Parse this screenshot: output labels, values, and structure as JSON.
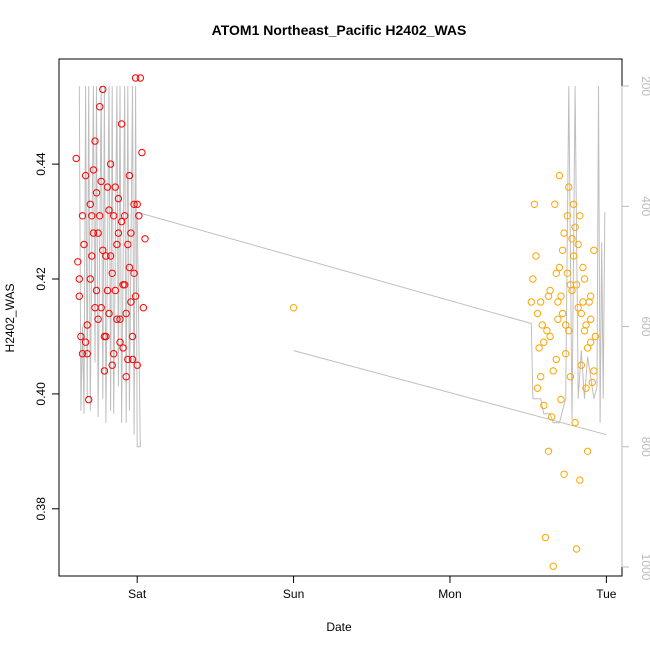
{
  "chart_data": {
    "type": "scatter",
    "title": "ATOM1 Northeast_Pacific H2402_WAS",
    "xlabel": "Date",
    "ylabel": "H2402_WAS",
    "x_tick_labels": [
      "Sat",
      "Sun",
      "Mon",
      "Tue"
    ],
    "y_tick_labels": [
      "0.38",
      "0.40",
      "0.42",
      "0.44"
    ],
    "y2_tick_labels": [
      "200",
      "400",
      "600",
      "800",
      "1000"
    ],
    "xlim": [
      -0.5,
      3.1
    ],
    "ylim": [
      0.3683,
      0.4583
    ],
    "y2lim": [
      1015,
      155
    ],
    "y2_reversed": true,
    "grid": false,
    "legend": "none",
    "colors": {
      "series_1": "#ff0000",
      "series_2": "#ffa500",
      "pressure_line": "#bebebe",
      "right_axis": "#bbbbbb"
    },
    "series": [
      {
        "marker": "open-circle",
        "color": "#ff0000",
        "points": [
          [
            -0.39,
            0.441
          ],
          [
            -0.38,
            0.423
          ],
          [
            -0.37,
            0.417
          ],
          [
            -0.36,
            0.41
          ],
          [
            -0.35,
            0.407
          ],
          [
            -0.34,
            0.426
          ],
          [
            -0.33,
            0.438
          ],
          [
            -0.32,
            0.412
          ],
          [
            -0.31,
            0.399
          ],
          [
            -0.3,
            0.42
          ],
          [
            -0.29,
            0.431
          ],
          [
            -0.28,
            0.439
          ],
          [
            -0.27,
            0.444
          ],
          [
            -0.26,
            0.435
          ],
          [
            -0.25,
            0.428
          ],
          [
            -0.24,
            0.45
          ],
          [
            -0.23,
            0.415
          ],
          [
            -0.22,
            0.453
          ],
          [
            -0.21,
            0.41
          ],
          [
            -0.2,
            0.424
          ],
          [
            -0.19,
            0.418
          ],
          [
            -0.18,
            0.432
          ],
          [
            -0.17,
            0.44
          ],
          [
            -0.16,
            0.421
          ],
          [
            -0.15,
            0.407
          ],
          [
            -0.14,
            0.436
          ],
          [
            -0.13,
            0.413
          ],
          [
            -0.12,
            0.428
          ],
          [
            -0.11,
            0.409
          ],
          [
            -0.1,
            0.447
          ],
          [
            -0.09,
            0.419
          ],
          [
            -0.08,
            0.431
          ],
          [
            -0.07,
            0.403
          ],
          [
            -0.06,
            0.426
          ],
          [
            -0.05,
            0.438
          ],
          [
            -0.04,
            0.416
          ],
          [
            -0.03,
            0.41
          ],
          [
            -0.02,
            0.433
          ],
          [
            -0.01,
            0.455
          ],
          [
            0.0,
            0.405
          ],
          [
            -0.37,
            0.42
          ],
          [
            -0.33,
            0.409
          ],
          [
            -0.3,
            0.433
          ],
          [
            -0.27,
            0.415
          ],
          [
            -0.24,
            0.431
          ],
          [
            -0.2,
            0.41
          ],
          [
            -0.17,
            0.424
          ],
          [
            -0.14,
            0.418
          ],
          [
            -0.1,
            0.43
          ],
          [
            -0.07,
            0.414
          ],
          [
            -0.04,
            0.428
          ],
          [
            -0.01,
            0.417
          ],
          [
            0.01,
            0.431
          ],
          [
            0.02,
            0.455
          ],
          [
            0.03,
            0.442
          ],
          [
            0.04,
            0.415
          ],
          [
            0.05,
            0.427
          ],
          [
            -0.06,
            0.406
          ],
          [
            -0.02,
            0.421
          ],
          [
            -0.16,
            0.405
          ],
          [
            -0.25,
            0.413
          ],
          [
            -0.12,
            0.434
          ],
          [
            -0.09,
            0.408
          ],
          [
            -0.21,
            0.404
          ],
          [
            -0.05,
            0.422
          ],
          [
            -0.35,
            0.431
          ],
          [
            -0.29,
            0.424
          ],
          [
            -0.19,
            0.436
          ],
          [
            -0.11,
            0.413
          ],
          [
            -0.03,
            0.406
          ],
          [
            -0.32,
            0.407
          ],
          [
            -0.28,
            0.428
          ],
          [
            -0.23,
            0.437
          ],
          [
            -0.18,
            0.414
          ],
          [
            -0.13,
            0.426
          ],
          [
            -0.08,
            0.419
          ],
          [
            0.0,
            0.433
          ],
          [
            -0.26,
            0.418
          ],
          [
            -0.15,
            0.431
          ],
          [
            -0.22,
            0.425
          ]
        ]
      },
      {
        "marker": "open-circle",
        "color": "#ffa500",
        "points": [
          [
            2.54,
            0.433
          ],
          [
            2.55,
            0.424
          ],
          [
            2.56,
            0.414
          ],
          [
            2.57,
            0.408
          ],
          [
            2.58,
            0.403
          ],
          [
            2.59,
            0.412
          ],
          [
            2.6,
            0.398
          ],
          [
            2.61,
            0.375
          ],
          [
            2.62,
            0.411
          ],
          [
            2.63,
            0.39
          ],
          [
            2.64,
            0.418
          ],
          [
            2.65,
            0.396
          ],
          [
            2.66,
            0.37
          ],
          [
            2.67,
            0.433
          ],
          [
            2.68,
            0.421
          ],
          [
            2.69,
            0.416
          ],
          [
            2.7,
            0.438
          ],
          [
            2.71,
            0.399
          ],
          [
            2.72,
            0.425
          ],
          [
            2.73,
            0.386
          ],
          [
            2.74,
            0.412
          ],
          [
            2.75,
            0.431
          ],
          [
            2.76,
            0.436
          ],
          [
            2.77,
            0.419
          ],
          [
            2.78,
            0.427
          ],
          [
            2.79,
            0.433
          ],
          [
            2.8,
            0.395
          ],
          [
            2.81,
            0.373
          ],
          [
            2.82,
            0.415
          ],
          [
            2.83,
            0.385
          ],
          [
            2.84,
            0.405
          ],
          [
            2.85,
            0.422
          ],
          [
            2.86,
            0.411
          ],
          [
            2.87,
            0.401
          ],
          [
            2.88,
            0.39
          ],
          [
            2.89,
            0.416
          ],
          [
            2.9,
            0.413
          ],
          [
            2.91,
            0.402
          ],
          [
            2.92,
            0.425
          ],
          [
            2.93,
            0.41
          ],
          [
            2.53,
            0.42
          ],
          [
            2.56,
            0.401
          ],
          [
            2.6,
            0.409
          ],
          [
            2.63,
            0.417
          ],
          [
            2.66,
            0.404
          ],
          [
            2.7,
            0.422
          ],
          [
            2.74,
            0.407
          ],
          [
            2.78,
            0.418
          ],
          [
            2.82,
            0.426
          ],
          [
            2.86,
            0.42
          ],
          [
            2.9,
            0.417
          ],
          [
            2.76,
            0.411
          ],
          [
            2.72,
            0.414
          ],
          [
            2.68,
            0.406
          ],
          [
            2.8,
            0.429
          ],
          [
            2.84,
            0.414
          ],
          [
            2.88,
            0.408
          ],
          [
            2.64,
            0.41
          ],
          [
            2.58,
            0.416
          ],
          [
            2.92,
            0.404
          ],
          [
            2.77,
            0.403
          ],
          [
            2.79,
            0.424
          ],
          [
            2.81,
            0.419
          ],
          [
            2.83,
            0.431
          ],
          [
            2.85,
            0.416
          ],
          [
            2.87,
            0.412
          ],
          [
            2.73,
            0.428
          ],
          [
            2.75,
            0.421
          ],
          [
            2.71,
            0.417
          ],
          [
            2.69,
            0.413
          ],
          [
            2.52,
            0.416
          ],
          [
            2.9,
            0.409
          ],
          [
            1.0,
            0.415
          ]
        ]
      }
    ],
    "pressure_line": {
      "axis": "right",
      "color": "#bebebe",
      "segments": [
        [
          [
            -0.37,
            200
          ],
          [
            -0.36,
            740
          ],
          [
            -0.35,
            600
          ],
          [
            -0.34,
            745
          ],
          [
            -0.33,
            200
          ],
          [
            -0.32,
            720
          ],
          [
            -0.31,
            200
          ],
          [
            -0.3,
            740
          ],
          [
            -0.28,
            200
          ],
          [
            -0.27,
            660
          ],
          [
            -0.26,
            200
          ],
          [
            -0.25,
            750
          ],
          [
            -0.23,
            200
          ],
          [
            -0.22,
            720
          ],
          [
            -0.21,
            200
          ],
          [
            -0.2,
            760
          ],
          [
            -0.18,
            200
          ],
          [
            -0.17,
            740
          ],
          [
            -0.16,
            200
          ],
          [
            -0.15,
            745
          ],
          [
            -0.13,
            200
          ],
          [
            -0.12,
            700
          ],
          [
            -0.11,
            200
          ],
          [
            -0.1,
            760
          ],
          [
            -0.08,
            200
          ],
          [
            -0.07,
            760
          ],
          [
            -0.06,
            200
          ],
          [
            -0.05,
            740
          ],
          [
            -0.03,
            200
          ],
          [
            -0.02,
            780
          ],
          [
            -0.01,
            200
          ],
          [
            0.0,
            800
          ],
          [
            0.02,
            800
          ],
          [
            0.0,
            410
          ],
          [
            2.52,
            595
          ],
          [
            2.53,
            720
          ],
          [
            2.58,
            720
          ],
          [
            2.6,
            745
          ],
          [
            2.64,
            745
          ],
          [
            2.66,
            760
          ],
          [
            2.7,
            760
          ],
          [
            2.74,
            720
          ],
          [
            2.76,
            200
          ],
          [
            2.78,
            755
          ],
          [
            2.8,
            200
          ],
          [
            2.82,
            720
          ],
          [
            2.84,
            640
          ],
          [
            2.86,
            720
          ],
          [
            2.88,
            650
          ],
          [
            2.92,
            720
          ],
          [
            2.94,
            700
          ],
          [
            2.95,
            200
          ],
          [
            2.96,
            760
          ],
          [
            2.97,
            460
          ],
          [
            2.98,
            720
          ],
          [
            2.99,
            410
          ]
        ],
        [
          [
            1.0,
            640
          ],
          [
            3.0,
            780
          ]
        ]
      ]
    }
  }
}
